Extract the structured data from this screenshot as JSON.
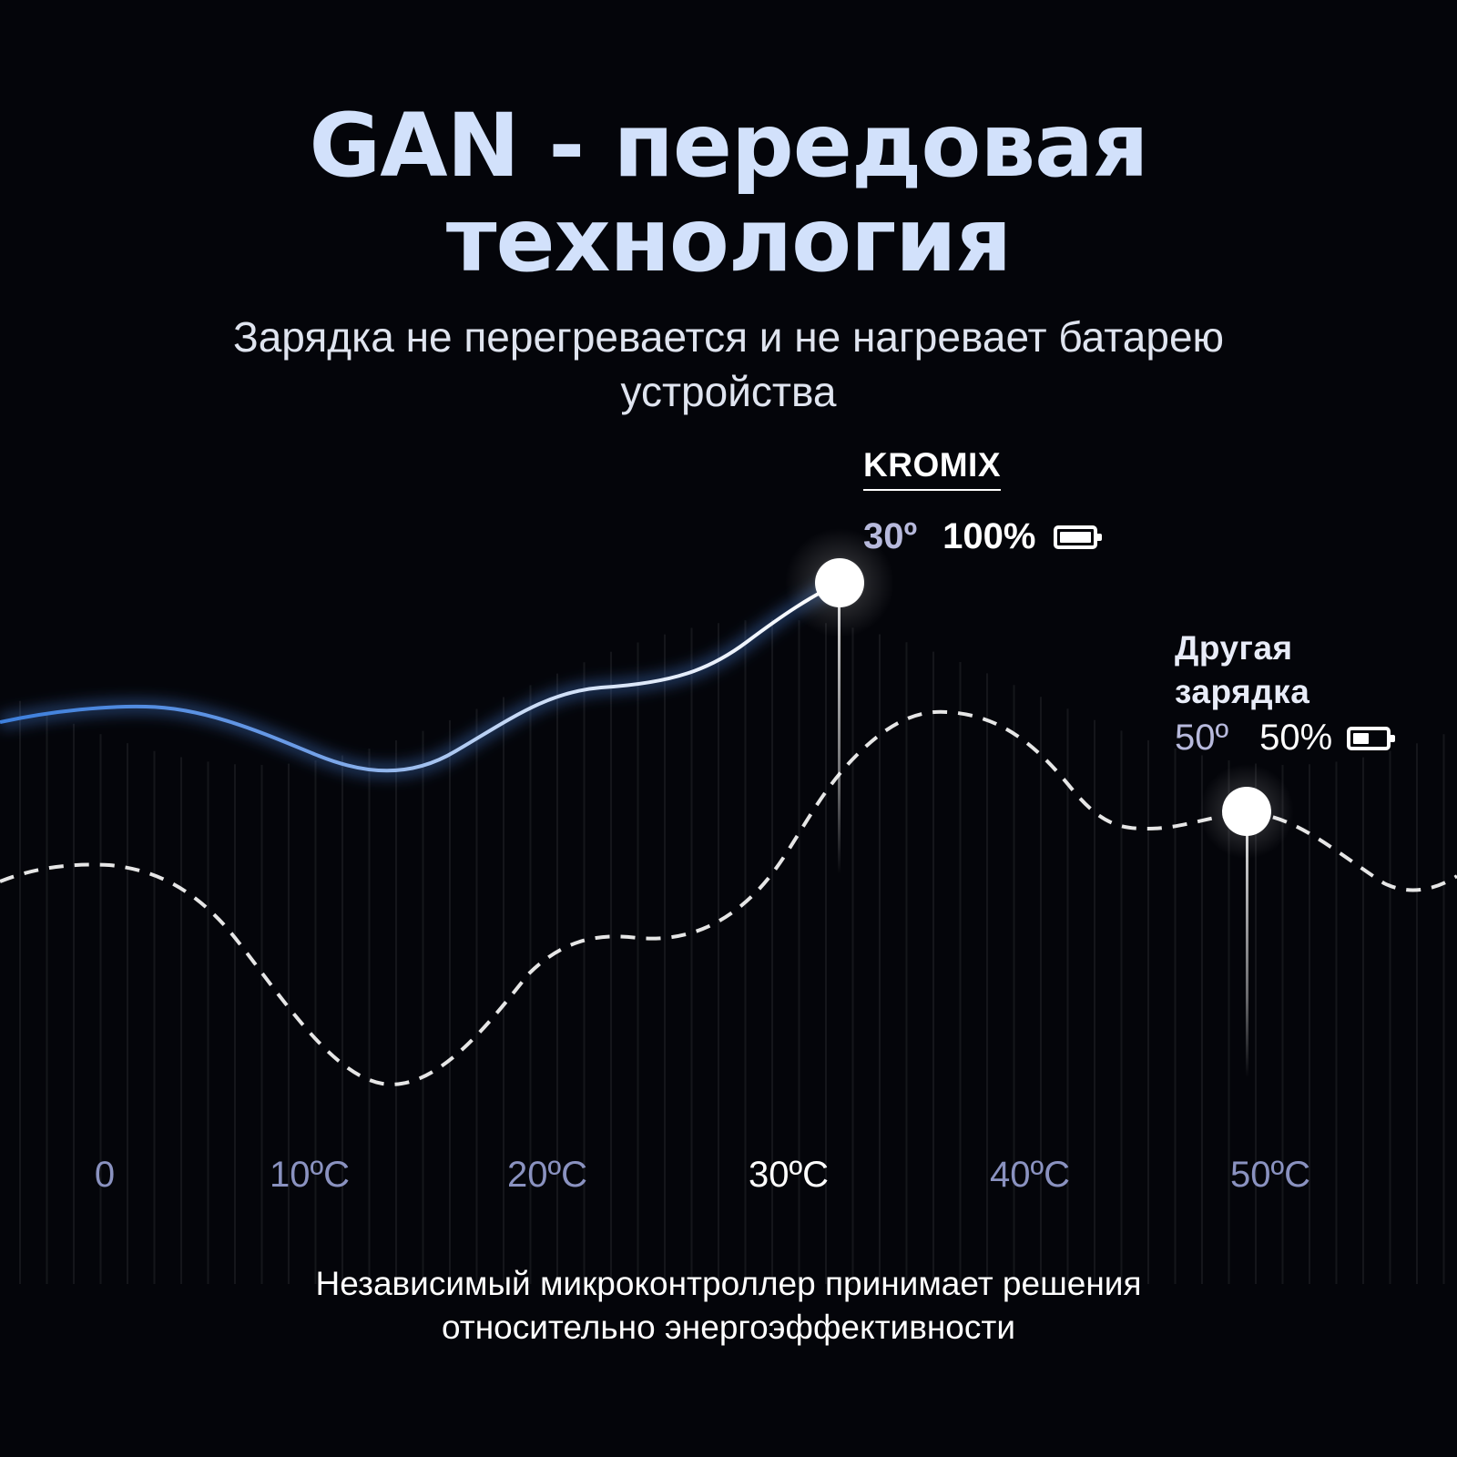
{
  "header": {
    "title_line1": "GAN - передовая",
    "title_line2": "технология",
    "subtitle_line1": "Зарядка не перегревается и не нагревает батарею",
    "subtitle_line2": "устройства"
  },
  "callouts": {
    "kromix": {
      "name": "KROMIX",
      "temp": "30º",
      "charge": "100%",
      "battery_level": 1.0
    },
    "other": {
      "name_line1": "Другая",
      "name_line2": "зарядка",
      "temp": "50º",
      "charge": "50%",
      "battery_level": 0.5
    }
  },
  "axis": {
    "labels": [
      "0",
      "10ºC",
      "20ºC",
      "30ºC",
      "40ºC",
      "50ºC"
    ],
    "highlighted": "30ºC"
  },
  "footer": {
    "line1": "Независимый микроконтроллер принимает решения",
    "line2": "относительно энергоэффективности"
  },
  "colors": {
    "background": "#04050a",
    "title": "#d2e1fb",
    "kromix_curve_start": "#3d7fdc",
    "kromix_curve_end": "#ffffff",
    "other_curve": "#e6e6e6",
    "axis_label": "#8a92c0"
  }
}
